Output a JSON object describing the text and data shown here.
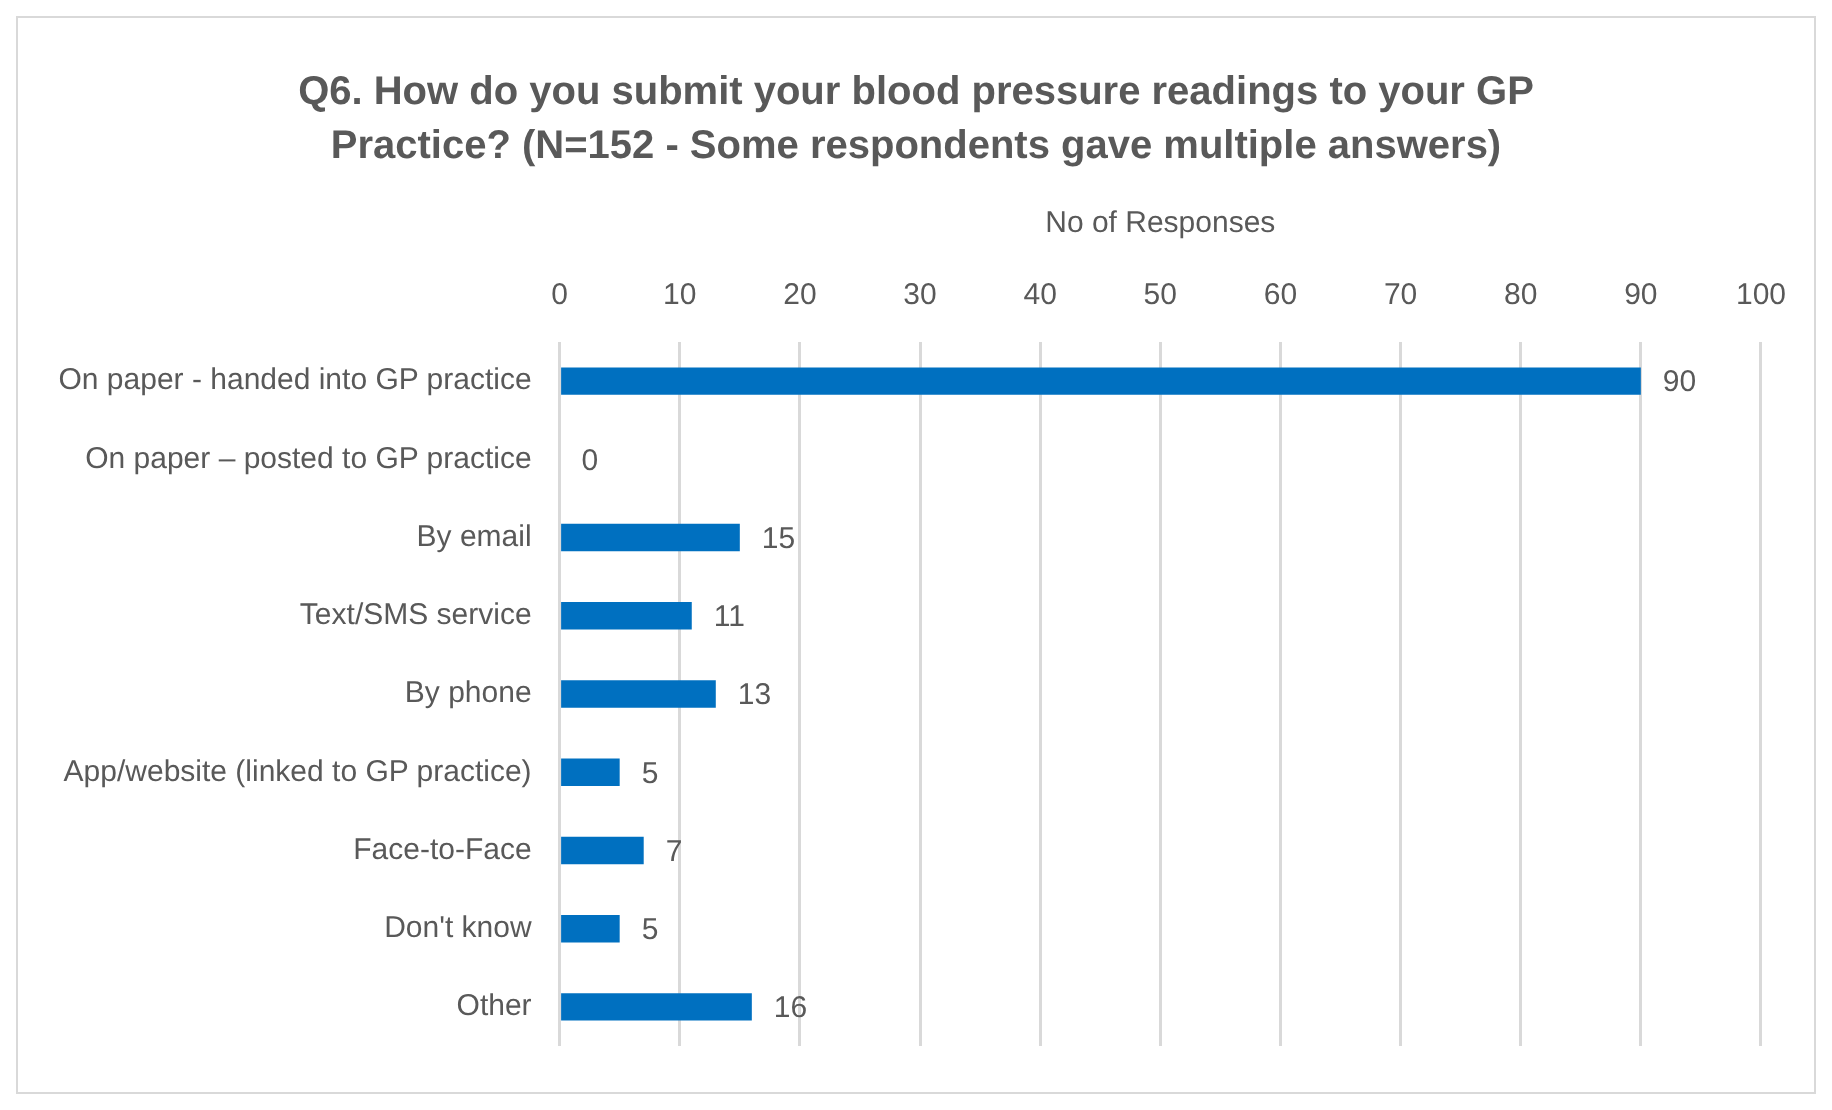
{
  "chart_data": {
    "type": "bar",
    "orientation": "horizontal",
    "title": "Q6. How do you submit your blood pressure readings to your GP Practice? (N=152 - Some respondents gave multiple answers)",
    "xlabel": "No of Responses",
    "categories": [
      "On paper - handed into GP practice",
      "On paper – posted to GP practice",
      "By email",
      "Text/SMS service",
      "By phone",
      "App/website (linked to GP practice)",
      "Face-to-Face",
      "Don't know",
      "Other"
    ],
    "values": [
      90,
      0,
      15,
      11,
      13,
      5,
      7,
      5,
      16
    ],
    "color": "#0070c0",
    "xlim": [
      0,
      100
    ],
    "xticks": [
      0,
      10,
      20,
      30,
      40,
      50,
      60,
      70,
      80,
      90,
      100
    ],
    "grid": "x",
    "data_labels": true
  }
}
